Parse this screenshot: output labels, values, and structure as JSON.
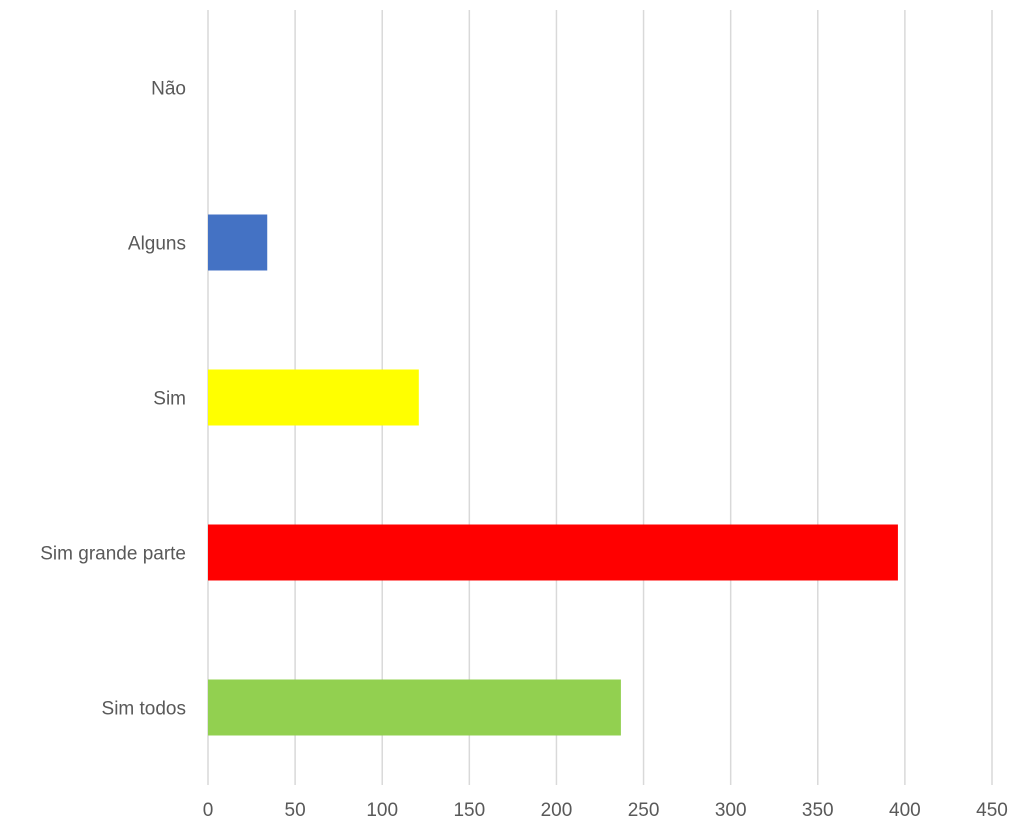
{
  "chart_data": {
    "type": "bar",
    "orientation": "horizontal",
    "title": "",
    "xlabel": "",
    "ylabel": "",
    "categories": [
      "Não",
      "Alguns",
      "Sim",
      "Sim grande parte",
      "Sim todos"
    ],
    "values": [
      0,
      34,
      121,
      396,
      237
    ],
    "colors": [
      "#4472c4",
      "#4472c4",
      "#ffff00",
      "#ff0000",
      "#92d050"
    ],
    "xlim": [
      0,
      450
    ],
    "xticks": [
      0,
      50,
      100,
      150,
      200,
      250,
      300,
      350,
      400,
      450
    ],
    "xtick_labels": [
      "0",
      "50",
      "100",
      "150",
      "200",
      "250",
      "300",
      "350",
      "400",
      "450"
    ],
    "grid": "vertical",
    "legend": "none"
  }
}
